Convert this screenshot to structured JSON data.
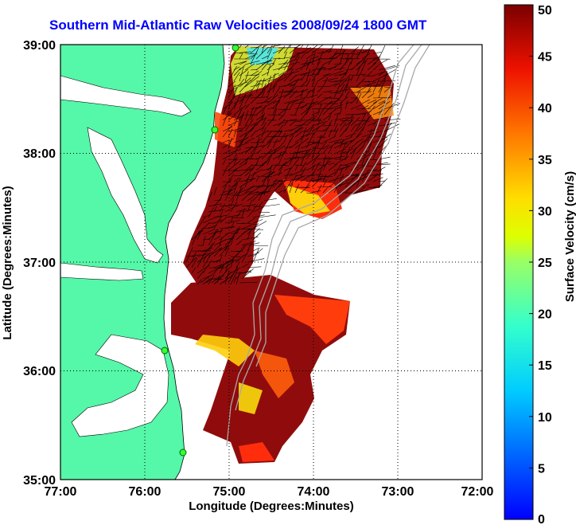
{
  "title": "Southern Mid-Atlantic Raw Velocities 2008/09/24 1800 GMT",
  "map": {
    "xlabel": "Longitude (Degrees:Minutes)",
    "ylabel": "Latitude (Degrees:Minutes)",
    "lon_range": [
      -77,
      -72
    ],
    "lat_range": [
      35,
      39
    ],
    "x_ticks": [
      "77:00",
      "76:00",
      "75:00",
      "74:00",
      "73:00",
      "72:00"
    ],
    "y_ticks": [
      "35:00",
      "36:00",
      "37:00",
      "38:00",
      "39:00"
    ],
    "land_color": "#55f7a8",
    "gridlines": true
  },
  "colorbar": {
    "label": "Surface Velocity (cm/s)",
    "min": 0,
    "max": 50,
    "ticks": [
      "0",
      "5",
      "10",
      "15",
      "20",
      "25",
      "30",
      "35",
      "40",
      "45",
      "50"
    ],
    "colormap": "jet"
  }
}
